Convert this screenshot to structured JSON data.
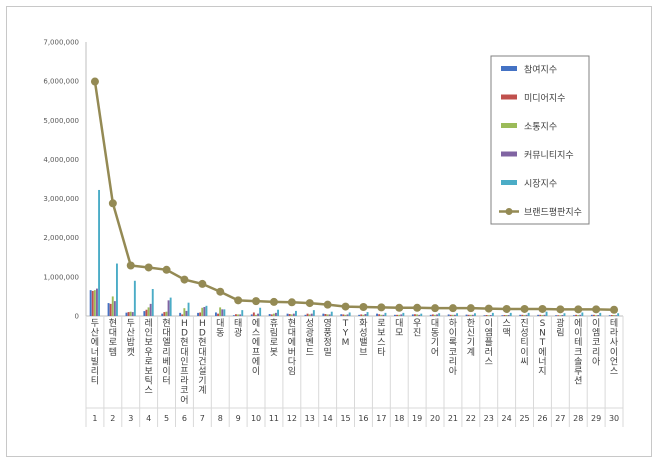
{
  "chart_data": {
    "type": "bar",
    "y_ticks": [
      "0",
      "1,000,000",
      "2,000,000",
      "3,000,000",
      "4,000,000",
      "5,000,000",
      "6,000,000",
      "7,000,000"
    ],
    "ylim": [
      0,
      7000000
    ],
    "legend_position": "top-right",
    "categories": [
      "두산에너빌리티",
      "현대로템",
      "두산밥캣",
      "레인보우로보틱스",
      "현대엘리베이터",
      "HD현대인프라코어",
      "HD현대건설기계",
      "대동",
      "태광",
      "에스에프에이",
      "휴림로봇",
      "현대에버다임",
      "성광벤드",
      "영풍정밀",
      "TYM",
      "화성밸브",
      "로보스타",
      "대모",
      "우진",
      "대동기어",
      "하이록코리아",
      "한신기계",
      "이엠플러스",
      "스맥",
      "진성티이씨",
      "SNT에너지",
      "광림",
      "에이테크솔루션",
      "이엠코리아",
      "테라사이언스"
    ],
    "index_labels": [
      "1",
      "2",
      "3",
      "4",
      "5",
      "6",
      "7",
      "8",
      "9",
      "10",
      "11",
      "12",
      "13",
      "14",
      "15",
      "16",
      "17",
      "18",
      "19",
      "20",
      "21",
      "22",
      "23",
      "24",
      "25",
      "26",
      "27",
      "28",
      "29",
      "30"
    ],
    "series": [
      {
        "name": "참여지수",
        "color": "#4472c4",
        "type": "bar",
        "values": [
          660000,
          330000,
          85000,
          125000,
          60000,
          80000,
          80000,
          90000,
          20000,
          40000,
          50000,
          60000,
          30000,
          60000,
          45000,
          30000,
          60000,
          30000,
          40000,
          30000,
          40000,
          35000,
          20000,
          20000,
          30000,
          30000,
          20000,
          20000,
          30000,
          20000
        ]
      },
      {
        "name": "미디어지수",
        "color": "#c0504d",
        "type": "bar",
        "values": [
          640000,
          310000,
          100000,
          160000,
          100000,
          40000,
          90000,
          60000,
          45000,
          90000,
          40000,
          50000,
          60000,
          50000,
          40000,
          40000,
          45000,
          30000,
          45000,
          40000,
          30000,
          30000,
          25000,
          25000,
          30000,
          30000,
          20000,
          30000,
          30000,
          25000
        ]
      },
      {
        "name": "소통지수",
        "color": "#9bbb59",
        "type": "bar",
        "values": [
          660000,
          500000,
          110000,
          220000,
          110000,
          200000,
          210000,
          220000,
          40000,
          30000,
          60000,
          40000,
          40000,
          40000,
          30000,
          30000,
          30000,
          30000,
          40000,
          30000,
          30000,
          30000,
          20000,
          25000,
          25000,
          25000,
          20000,
          25000,
          20000,
          25000
        ]
      },
      {
        "name": "커뮤니티지수",
        "color": "#8064a2",
        "type": "bar",
        "values": [
          700000,
          380000,
          100000,
          310000,
          400000,
          130000,
          230000,
          170000,
          40000,
          60000,
          80000,
          60000,
          60000,
          40000,
          40000,
          50000,
          30000,
          40000,
          30000,
          40000,
          30000,
          30000,
          25000,
          25000,
          30000,
          30000,
          25000,
          30000,
          25000,
          20000
        ]
      },
      {
        "name": "시장지수",
        "color": "#4bacc6",
        "type": "bar",
        "values": [
          3220000,
          1340000,
          900000,
          690000,
          470000,
          340000,
          260000,
          170000,
          150000,
          210000,
          160000,
          130000,
          150000,
          110000,
          90000,
          100000,
          80000,
          80000,
          60000,
          70000,
          70000,
          70000,
          80000,
          80000,
          80000,
          110000,
          70000,
          90000,
          80000,
          70000
        ]
      },
      {
        "name": "브랜드평판지수",
        "color": "#948a54",
        "type": "line",
        "values": [
          5990000,
          2880000,
          1290000,
          1240000,
          1180000,
          930000,
          820000,
          620000,
          400000,
          380000,
          360000,
          350000,
          330000,
          290000,
          240000,
          230000,
          220000,
          210000,
          210000,
          200000,
          200000,
          200000,
          190000,
          180000,
          180000,
          180000,
          170000,
          170000,
          170000,
          160000
        ]
      }
    ]
  }
}
